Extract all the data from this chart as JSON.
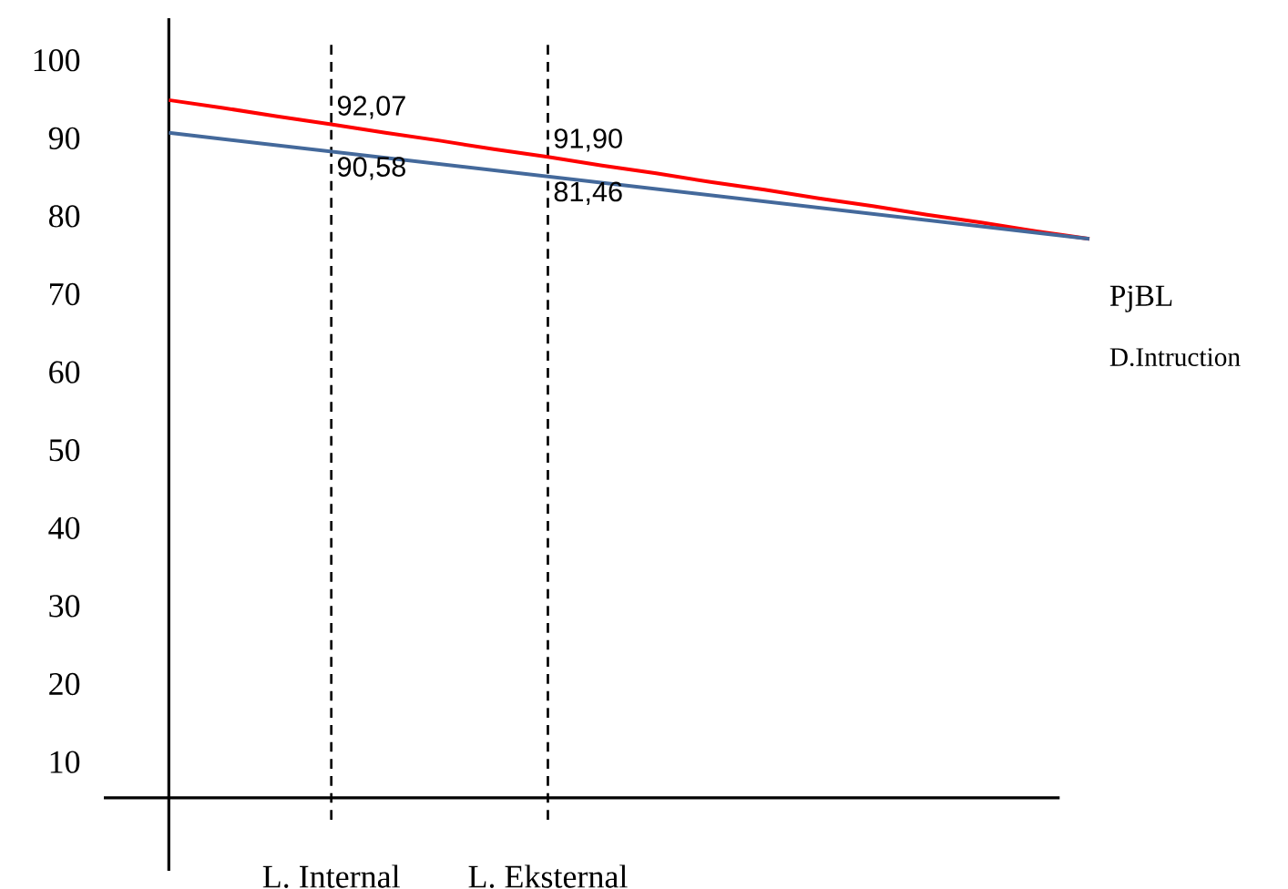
{
  "chart_data": {
    "type": "line",
    "legend": "right",
    "categories": [
      null,
      null,
      null,
      "L. Internal",
      null,
      null,
      null,
      "L. Eksternal",
      null,
      null,
      null,
      null,
      null,
      null,
      null,
      null,
      null,
      null
    ],
    "series": [
      {
        "name": "PjBL",
        "color": "#ff0000",
        "values": [
          94.9,
          93.9,
          92.8,
          91.8,
          90.7,
          89.7,
          88.6,
          87.6,
          86.5,
          85.5,
          84.4,
          83.4,
          82.3,
          81.3,
          80.2,
          79.2,
          78.1,
          77.1
        ]
      },
      {
        "name": "D.Intruction",
        "color": "#44699b",
        "values": [
          90.7,
          89.9,
          89.1,
          88.3,
          87.5,
          86.7,
          85.9,
          85.1,
          84.3,
          83.5,
          82.7,
          81.9,
          81.1,
          80.3,
          79.5,
          78.7,
          77.9,
          77.1
        ]
      }
    ],
    "ylim": [
      5.4,
      105.4
    ],
    "yticks": [
      10,
      20,
      30,
      40,
      50,
      60,
      70,
      80,
      90,
      100
    ],
    "ref_lines": [
      {
        "axis": "x",
        "value": "L. Internal",
        "line_style": "dashed"
      },
      {
        "axis": "x",
        "value": "L. Eksternal",
        "line_style": "dashed"
      }
    ],
    "annotations": [
      {
        "text": "92,07",
        "x": "L. Internal",
        "y": 91.8
      },
      {
        "text": "90,58",
        "x": "L. Internal",
        "y": 88.3
      },
      {
        "text": "91,90",
        "x": "L. Eksternal",
        "y": 87.6
      },
      {
        "text": "81,46",
        "x": "L. Eksternal",
        "y": 85.1
      }
    ]
  }
}
